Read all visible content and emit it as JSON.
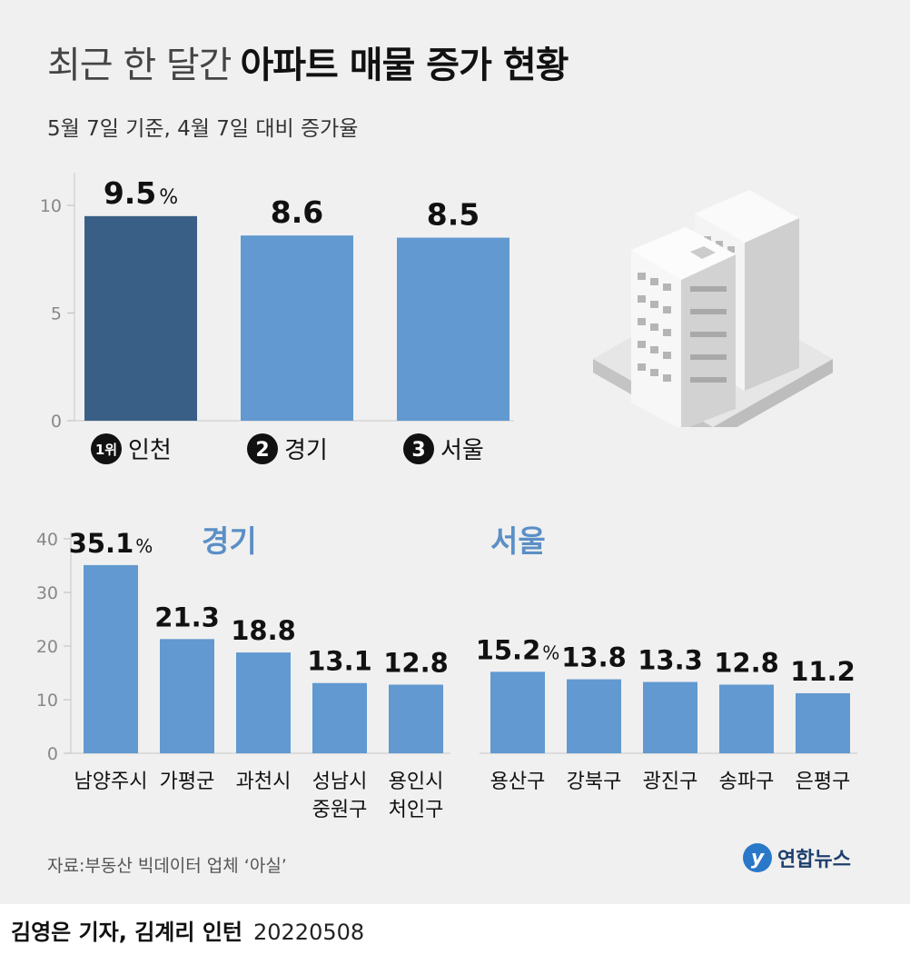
{
  "header": {
    "title_light": "최근 한 달간",
    "title_bold": "아파트 매물 증가 현황",
    "subtitle": "5월 7일 기준, 4월 7일 대비 증가율"
  },
  "footer": {
    "source": "자료:부동산 빅데이터 업체 ‘아실’",
    "logo_text": "연합뉴스",
    "byline": "김영은 기자, 김계리 인턴",
    "date": "20220508"
  },
  "colors": {
    "top_bar": "#3a5f86",
    "bar": "#6199d0",
    "group_label": "#5b8fc6",
    "badge": "#111111"
  },
  "chart_data": [
    {
      "type": "bar",
      "title": "",
      "categories": [
        "인천",
        "경기",
        "서울"
      ],
      "rank_badges": [
        "1위",
        "2",
        "3"
      ],
      "values": [
        9.5,
        8.6,
        8.5
      ],
      "value_labels": [
        "9.5",
        "8.6",
        "8.5"
      ],
      "unit": "%",
      "yticks": [
        0,
        5,
        10
      ],
      "ylim": [
        0,
        10
      ],
      "grid": false
    },
    {
      "type": "bar",
      "title": "경기",
      "categories": [
        [
          "남양주시"
        ],
        [
          "가평군"
        ],
        [
          "과천시"
        ],
        [
          "성남시",
          "중원구"
        ],
        [
          "용인시",
          "처인구"
        ]
      ],
      "values": [
        35.1,
        21.3,
        18.8,
        13.1,
        12.8
      ],
      "value_labels": [
        "35.1",
        "21.3",
        "18.8",
        "13.1",
        "12.8"
      ],
      "unit": "%",
      "yticks": [
        0,
        10,
        20,
        30,
        40
      ],
      "ylim": [
        0,
        40
      ],
      "grid": false
    },
    {
      "type": "bar",
      "title": "서울",
      "categories": [
        [
          "용산구"
        ],
        [
          "강북구"
        ],
        [
          "광진구"
        ],
        [
          "송파구"
        ],
        [
          "은평구"
        ]
      ],
      "values": [
        15.2,
        13.8,
        13.3,
        12.8,
        11.2
      ],
      "value_labels": [
        "15.2",
        "13.8",
        "13.3",
        "12.8",
        "11.2"
      ],
      "unit": "%",
      "ylim": [
        0,
        40
      ],
      "grid": false
    }
  ]
}
